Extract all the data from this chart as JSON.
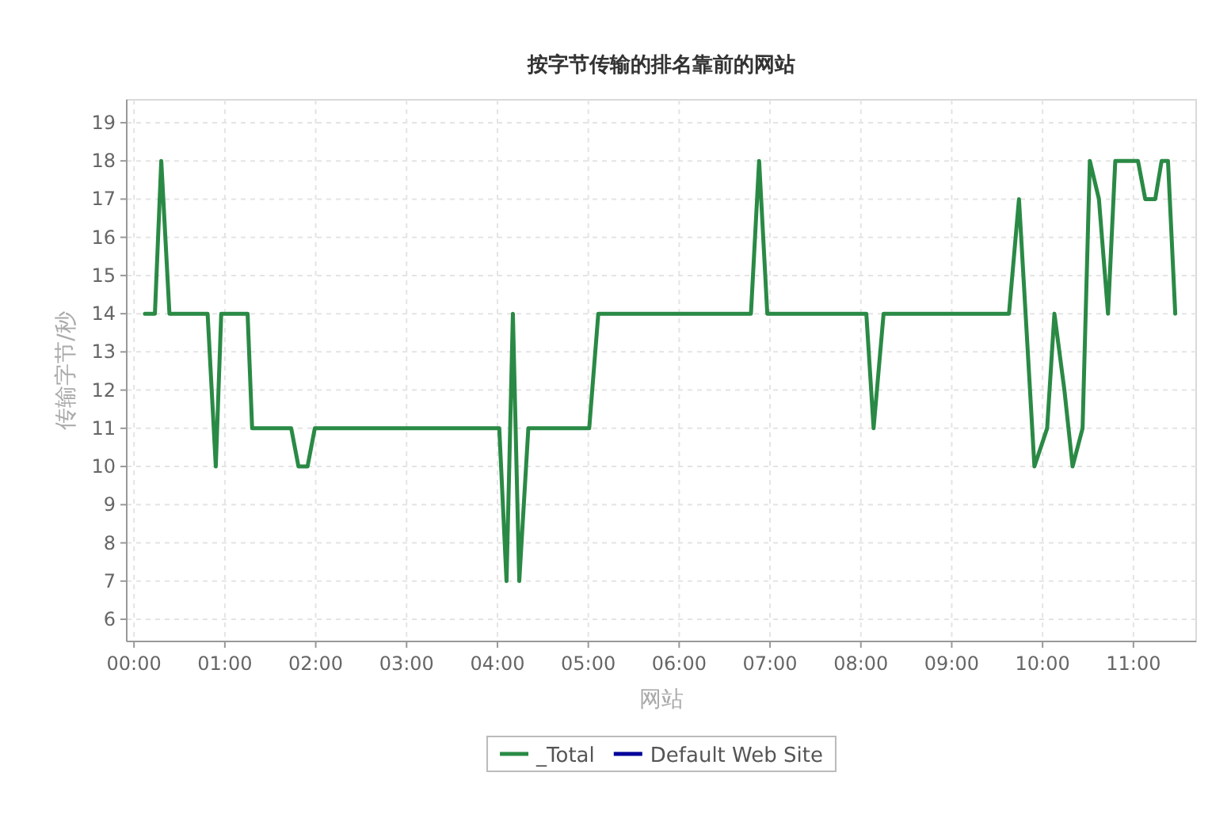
{
  "chart_data": {
    "type": "line",
    "title": "按字节传输的排名靠前的网站",
    "xlabel": "网站",
    "ylabel": "传输字节/秒",
    "x": [
      0.12,
      0.23,
      0.3,
      0.39,
      0.81,
      0.9,
      0.96,
      1.25,
      1.3,
      1.73,
      1.81,
      1.91,
      1.99,
      4.02,
      4.1,
      4.17,
      4.24,
      4.34,
      5.01,
      5.11,
      6.79,
      6.88,
      6.97,
      8.06,
      8.14,
      8.25,
      9.63,
      9.74,
      9.91,
      10.05,
      10.13,
      10.24,
      10.33,
      10.44,
      10.52,
      10.62,
      10.72,
      10.8,
      11.05,
      11.13,
      11.24,
      11.31,
      11.38,
      11.46
    ],
    "series": [
      {
        "name": "_Total",
        "color": "#2a8a45",
        "values": [
          14,
          14,
          18,
          14,
          14,
          10,
          14,
          14,
          11,
          11,
          10,
          10,
          11,
          11,
          7,
          14,
          7,
          11,
          11,
          14,
          14,
          18,
          14,
          14,
          11,
          14,
          14,
          17,
          10,
          11,
          14,
          12,
          10,
          11,
          18,
          17,
          14,
          18,
          18,
          17,
          17,
          18,
          18,
          14
        ]
      },
      {
        "name": "Default Web Site",
        "color": "#000099",
        "values": [
          null,
          null,
          null,
          null,
          null,
          null,
          null,
          null,
          null,
          null,
          null,
          null,
          null,
          null,
          null,
          null,
          null,
          null,
          null,
          null,
          null,
          null,
          null,
          null,
          null,
          null,
          null,
          null,
          null,
          null,
          null,
          null,
          null,
          null,
          null,
          null,
          null,
          null,
          null,
          null,
          null,
          null,
          null,
          null
        ]
      }
    ],
    "xlim": [
      -0.08,
      11.69
    ],
    "ylim": [
      5.42,
      19.6
    ],
    "xticks": [
      {
        "value": 0,
        "label": "00:00"
      },
      {
        "value": 1,
        "label": "01:00"
      },
      {
        "value": 2,
        "label": "02:00"
      },
      {
        "value": 3,
        "label": "03:00"
      },
      {
        "value": 4,
        "label": "04:00"
      },
      {
        "value": 5,
        "label": "05:00"
      },
      {
        "value": 6,
        "label": "06:00"
      },
      {
        "value": 7,
        "label": "07:00"
      },
      {
        "value": 8,
        "label": "08:00"
      },
      {
        "value": 9,
        "label": "09:00"
      },
      {
        "value": 10,
        "label": "10:00"
      },
      {
        "value": 11,
        "label": "11:00"
      }
    ],
    "yticks": [
      6,
      7,
      8,
      9,
      10,
      11,
      12,
      13,
      14,
      15,
      16,
      17,
      18,
      19
    ],
    "grid": true,
    "legend": "bottom",
    "line_style": "solid"
  }
}
